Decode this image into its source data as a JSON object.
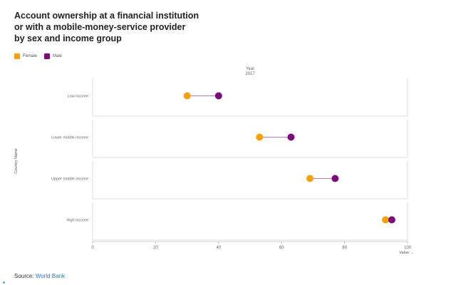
{
  "title_lines": [
    "Account ownership at a financial institution",
    "or with a mobile-money-service provider",
    "by sex and income group"
  ],
  "legend": [
    {
      "label": "Female",
      "color": "#f5a20a"
    },
    {
      "label": "Male",
      "color": "#7b0a7b"
    }
  ],
  "source": {
    "prefix": "Source:",
    "link": "World Bank"
  },
  "chart_data": {
    "type": "scatter",
    "subtype": "dumbbell",
    "facet_header": [
      "Year",
      "2017"
    ],
    "xlabel": "Value →",
    "ylabel": "Country Name",
    "xlim": [
      0,
      100
    ],
    "xticks": [
      0,
      20,
      40,
      60,
      80,
      100
    ],
    "categories": [
      "Low income",
      "Lower middle income",
      "Upper middle income",
      "High income"
    ],
    "series": [
      {
        "name": "Female",
        "color": "#f5a20a",
        "values": [
          30,
          53,
          69,
          93
        ]
      },
      {
        "name": "Male",
        "color": "#7b0a7b",
        "values": [
          40,
          63,
          77,
          95
        ]
      }
    ],
    "connector_color": "#7b0a7b",
    "grid": false
  }
}
